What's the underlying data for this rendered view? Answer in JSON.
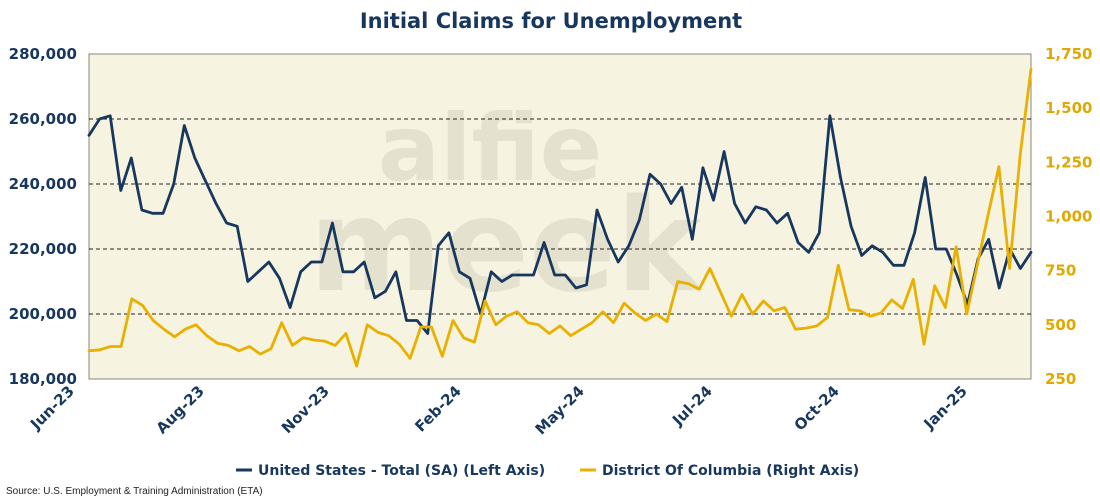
{
  "chart_data": {
    "type": "line",
    "title": "Initial Claims for Unemployment",
    "x_ticks": [
      "Jun-23",
      "Aug-23",
      "Nov-23",
      "Feb-24",
      "May-24",
      "Jul-24",
      "Oct-24",
      "Jan-25"
    ],
    "left_axis": {
      "ylim": [
        180000,
        280000
      ],
      "ticks": [
        "180,000",
        "200,000",
        "220,000",
        "240,000",
        "260,000",
        "280,000"
      ]
    },
    "right_axis": {
      "ylim": [
        250,
        1750
      ],
      "ticks": [
        "250",
        "500",
        "750",
        "1,000",
        "1,250",
        "1,500",
        "1,750"
      ]
    },
    "grid": "horizontal dashed",
    "legend_position": "bottom",
    "series": [
      {
        "name": "United States - Total (SA) (Left Axis)",
        "axis": "left",
        "color": "#17375e",
        "values": [
          255000,
          260000,
          261000,
          238000,
          248000,
          232000,
          231000,
          231000,
          240000,
          258000,
          248000,
          241000,
          234000,
          228000,
          227000,
          210000,
          213000,
          216000,
          211000,
          202000,
          213000,
          216000,
          216000,
          228000,
          213000,
          213000,
          216000,
          205000,
          207000,
          213000,
          198000,
          198000,
          194000,
          221000,
          225000,
          213000,
          211000,
          200000,
          213000,
          210000,
          212000,
          212000,
          212000,
          222000,
          212000,
          212000,
          208000,
          209000,
          232000,
          223000,
          216000,
          221000,
          229000,
          243000,
          240000,
          234000,
          239000,
          223000,
          245000,
          235000,
          250000,
          234000,
          228000,
          233000,
          232000,
          228000,
          231000,
          222000,
          219000,
          225000,
          261000,
          242000,
          227000,
          218000,
          221000,
          219000,
          215000,
          215000,
          225000,
          242000,
          220000,
          220000,
          212000,
          203000,
          217000,
          223000,
          208000,
          220000,
          214000,
          219000
        ]
      },
      {
        "name": "District Of Columbia (Right Axis)",
        "axis": "right",
        "color": "#e8b000",
        "values": [
          380,
          385,
          400,
          400,
          620,
          590,
          520,
          480,
          445,
          480,
          500,
          450,
          415,
          405,
          380,
          400,
          365,
          390,
          510,
          405,
          440,
          430,
          425,
          405,
          460,
          310,
          500,
          465,
          450,
          410,
          345,
          490,
          490,
          355,
          520,
          440,
          420,
          610,
          500,
          540,
          560,
          510,
          500,
          460,
          495,
          450,
          480,
          510,
          560,
          510,
          600,
          555,
          520,
          550,
          515,
          700,
          690,
          665,
          760,
          650,
          540,
          640,
          550,
          610,
          565,
          580,
          480,
          485,
          495,
          535,
          775,
          570,
          565,
          540,
          555,
          615,
          575,
          710,
          410,
          680,
          580,
          860,
          550,
          780,
          1010,
          1230,
          760,
          1290,
          1680
        ]
      }
    ]
  },
  "source": "Source: U.S. Employment & Training Administration (ETA)",
  "watermark": [
    "alfie",
    "meek"
  ]
}
